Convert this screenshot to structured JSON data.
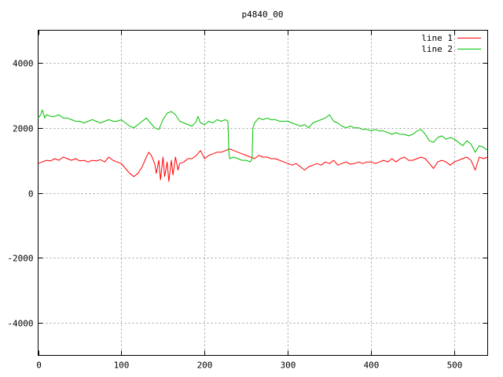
{
  "chart_data": {
    "type": "line",
    "title": "p4840_00",
    "xlabel": "",
    "ylabel": "",
    "xlim": [
      0,
      540
    ],
    "ylim": [
      -5000,
      5000
    ],
    "xticks": [
      0,
      100,
      200,
      300,
      400,
      500
    ],
    "yticks": [
      -4000,
      -2000,
      0,
      2000,
      4000
    ],
    "grid": true,
    "legend_position": "top-right",
    "series": [
      {
        "name": "line 1",
        "color": "#ff0000",
        "points": [
          [
            0,
            900
          ],
          [
            5,
            950
          ],
          [
            10,
            1000
          ],
          [
            15,
            980
          ],
          [
            20,
            1050
          ],
          [
            25,
            1000
          ],
          [
            30,
            1100
          ],
          [
            35,
            1050
          ],
          [
            40,
            1000
          ],
          [
            45,
            1050
          ],
          [
            50,
            980
          ],
          [
            55,
            1000
          ],
          [
            60,
            950
          ],
          [
            65,
            1000
          ],
          [
            70,
            980
          ],
          [
            75,
            1020
          ],
          [
            80,
            950
          ],
          [
            85,
            1100
          ],
          [
            90,
            1000
          ],
          [
            95,
            950
          ],
          [
            100,
            900
          ],
          [
            105,
            750
          ],
          [
            110,
            600
          ],
          [
            115,
            500
          ],
          [
            120,
            600
          ],
          [
            125,
            800
          ],
          [
            130,
            1100
          ],
          [
            133,
            1250
          ],
          [
            136,
            1150
          ],
          [
            140,
            900
          ],
          [
            142,
            600
          ],
          [
            145,
            1000
          ],
          [
            147,
            400
          ],
          [
            150,
            1100
          ],
          [
            152,
            500
          ],
          [
            155,
            950
          ],
          [
            157,
            350
          ],
          [
            160,
            1000
          ],
          [
            162,
            550
          ],
          [
            165,
            1100
          ],
          [
            168,
            700
          ],
          [
            170,
            900
          ],
          [
            175,
            950
          ],
          [
            180,
            1050
          ],
          [
            185,
            1050
          ],
          [
            190,
            1150
          ],
          [
            195,
            1300
          ],
          [
            200,
            1050
          ],
          [
            205,
            1150
          ],
          [
            210,
            1200
          ],
          [
            215,
            1250
          ],
          [
            220,
            1250
          ],
          [
            225,
            1300
          ],
          [
            230,
            1350
          ],
          [
            235,
            1300
          ],
          [
            240,
            1250
          ],
          [
            245,
            1200
          ],
          [
            250,
            1150
          ],
          [
            255,
            1100
          ],
          [
            260,
            1050
          ],
          [
            265,
            1150
          ],
          [
            270,
            1100
          ],
          [
            275,
            1100
          ],
          [
            280,
            1050
          ],
          [
            285,
            1050
          ],
          [
            290,
            1000
          ],
          [
            295,
            950
          ],
          [
            300,
            900
          ],
          [
            305,
            850
          ],
          [
            310,
            900
          ],
          [
            315,
            800
          ],
          [
            320,
            700
          ],
          [
            325,
            800
          ],
          [
            330,
            850
          ],
          [
            335,
            900
          ],
          [
            340,
            850
          ],
          [
            345,
            950
          ],
          [
            350,
            900
          ],
          [
            355,
            1000
          ],
          [
            360,
            850
          ],
          [
            365,
            900
          ],
          [
            370,
            950
          ],
          [
            375,
            880
          ],
          [
            380,
            900
          ],
          [
            385,
            950
          ],
          [
            390,
            900
          ],
          [
            395,
            950
          ],
          [
            400,
            950
          ],
          [
            405,
            900
          ],
          [
            410,
            950
          ],
          [
            415,
            1000
          ],
          [
            420,
            950
          ],
          [
            425,
            1050
          ],
          [
            430,
            950
          ],
          [
            435,
            1050
          ],
          [
            440,
            1100
          ],
          [
            445,
            1000
          ],
          [
            450,
            1000
          ],
          [
            455,
            1050
          ],
          [
            460,
            1100
          ],
          [
            465,
            1050
          ],
          [
            470,
            900
          ],
          [
            475,
            750
          ],
          [
            480,
            950
          ],
          [
            485,
            1000
          ],
          [
            490,
            950
          ],
          [
            495,
            850
          ],
          [
            500,
            950
          ],
          [
            505,
            1000
          ],
          [
            510,
            1050
          ],
          [
            515,
            1100
          ],
          [
            520,
            1000
          ],
          [
            525,
            700
          ],
          [
            530,
            1100
          ],
          [
            535,
            1050
          ],
          [
            540,
            1100
          ]
        ]
      },
      {
        "name": "line 2",
        "color": "#00c000",
        "points": [
          [
            0,
            2300
          ],
          [
            3,
            2400
          ],
          [
            5,
            2550
          ],
          [
            8,
            2300
          ],
          [
            10,
            2400
          ],
          [
            15,
            2350
          ],
          [
            20,
            2350
          ],
          [
            25,
            2400
          ],
          [
            30,
            2300
          ],
          [
            35,
            2300
          ],
          [
            40,
            2250
          ],
          [
            45,
            2200
          ],
          [
            50,
            2200
          ],
          [
            55,
            2150
          ],
          [
            60,
            2200
          ],
          [
            65,
            2250
          ],
          [
            70,
            2200
          ],
          [
            75,
            2150
          ],
          [
            80,
            2200
          ],
          [
            85,
            2250
          ],
          [
            90,
            2200
          ],
          [
            95,
            2200
          ],
          [
            100,
            2250
          ],
          [
            105,
            2150
          ],
          [
            110,
            2050
          ],
          [
            115,
            2000
          ],
          [
            120,
            2100
          ],
          [
            125,
            2200
          ],
          [
            130,
            2300
          ],
          [
            135,
            2150
          ],
          [
            140,
            2000
          ],
          [
            145,
            1950
          ],
          [
            150,
            2250
          ],
          [
            155,
            2450
          ],
          [
            160,
            2500
          ],
          [
            165,
            2400
          ],
          [
            170,
            2200
          ],
          [
            175,
            2150
          ],
          [
            180,
            2100
          ],
          [
            185,
            2050
          ],
          [
            190,
            2200
          ],
          [
            192,
            2350
          ],
          [
            195,
            2150
          ],
          [
            200,
            2100
          ],
          [
            205,
            2200
          ],
          [
            210,
            2150
          ],
          [
            215,
            2250
          ],
          [
            220,
            2200
          ],
          [
            225,
            2250
          ],
          [
            228,
            2200
          ],
          [
            229,
            1300
          ],
          [
            230,
            1050
          ],
          [
            235,
            1100
          ],
          [
            240,
            1050
          ],
          [
            245,
            1000
          ],
          [
            250,
            1000
          ],
          [
            255,
            950
          ],
          [
            257,
            1050
          ],
          [
            258,
            2000
          ],
          [
            260,
            2150
          ],
          [
            265,
            2300
          ],
          [
            270,
            2250
          ],
          [
            275,
            2300
          ],
          [
            280,
            2250
          ],
          [
            285,
            2250
          ],
          [
            290,
            2200
          ],
          [
            295,
            2200
          ],
          [
            300,
            2200
          ],
          [
            305,
            2150
          ],
          [
            310,
            2100
          ],
          [
            315,
            2050
          ],
          [
            320,
            2100
          ],
          [
            325,
            2000
          ],
          [
            330,
            2150
          ],
          [
            335,
            2200
          ],
          [
            340,
            2250
          ],
          [
            345,
            2300
          ],
          [
            350,
            2400
          ],
          [
            355,
            2200
          ],
          [
            360,
            2150
          ],
          [
            365,
            2050
          ],
          [
            370,
            2000
          ],
          [
            375,
            2050
          ],
          [
            380,
            2000
          ],
          [
            385,
            2000
          ],
          [
            390,
            1950
          ],
          [
            395,
            1950
          ],
          [
            400,
            1900
          ],
          [
            405,
            1950
          ],
          [
            410,
            1900
          ],
          [
            415,
            1900
          ],
          [
            420,
            1850
          ],
          [
            425,
            1800
          ],
          [
            430,
            1850
          ],
          [
            435,
            1800
          ],
          [
            440,
            1800
          ],
          [
            445,
            1750
          ],
          [
            450,
            1800
          ],
          [
            455,
            1900
          ],
          [
            460,
            1950
          ],
          [
            465,
            1800
          ],
          [
            470,
            1600
          ],
          [
            475,
            1550
          ],
          [
            480,
            1700
          ],
          [
            485,
            1750
          ],
          [
            490,
            1650
          ],
          [
            495,
            1700
          ],
          [
            500,
            1650
          ],
          [
            505,
            1550
          ],
          [
            510,
            1450
          ],
          [
            515,
            1600
          ],
          [
            520,
            1500
          ],
          [
            525,
            1250
          ],
          [
            530,
            1450
          ],
          [
            535,
            1400
          ],
          [
            540,
            1300
          ]
        ]
      }
    ]
  }
}
